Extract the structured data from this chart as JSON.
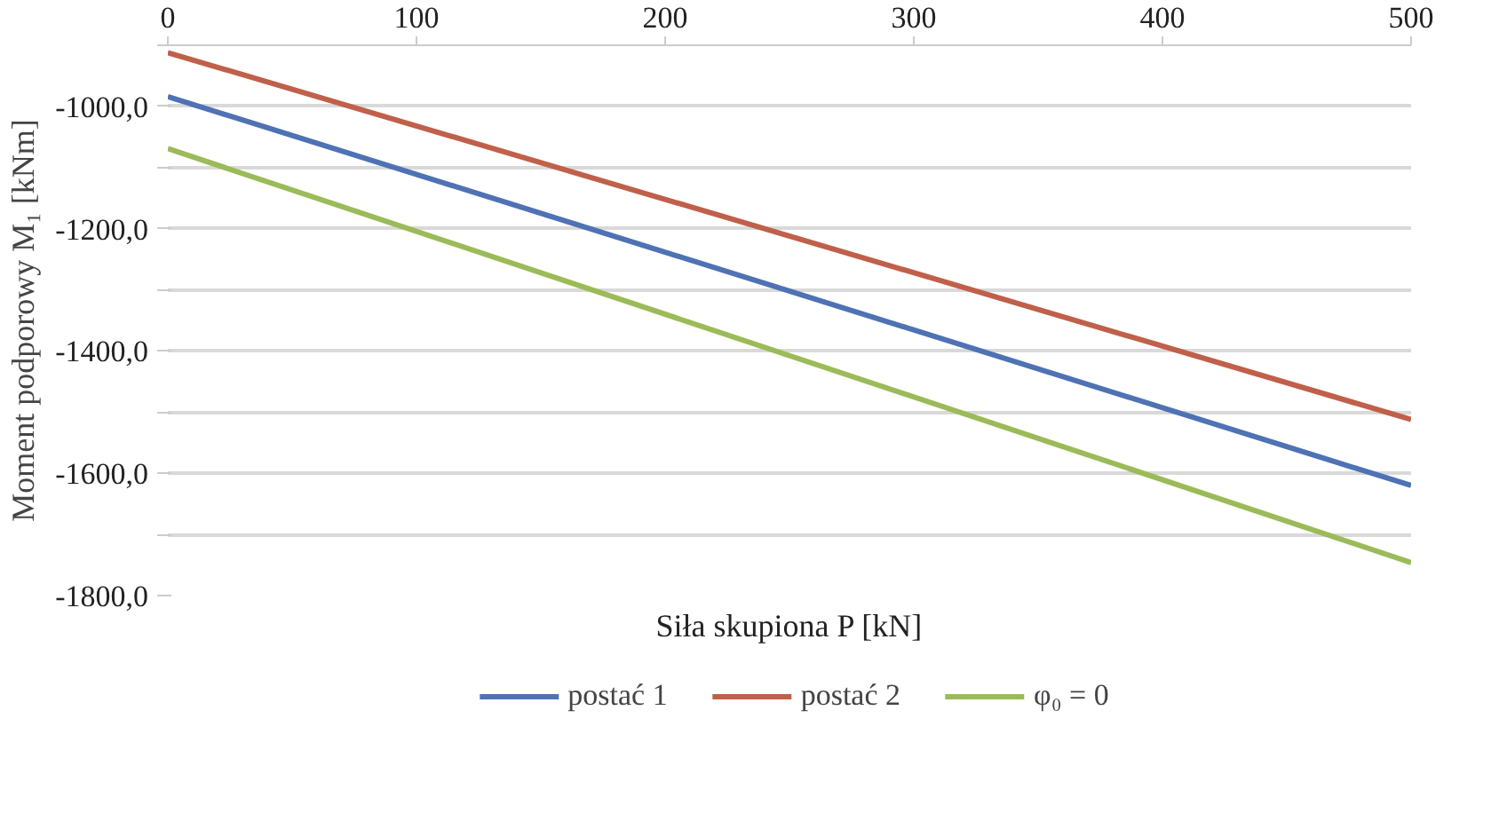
{
  "chart_data": {
    "type": "line",
    "xlabel": "Siła skupiona P [kN]",
    "ylabel": "Moment podporowy M₁ [kNm]",
    "x": [
      0,
      500
    ],
    "series": [
      {
        "name": "postać 1",
        "color": "#4f72b5",
        "values": [
          -984,
          -1620
        ]
      },
      {
        "name": "postać 2",
        "color": "#c0604a",
        "values": [
          -912,
          -1512
        ]
      },
      {
        "name": "φ₀ = 0",
        "color": "#9bbb59",
        "values": [
          -1069,
          -1746
        ]
      }
    ],
    "xlim": [
      0,
      500
    ],
    "xticks": [
      0,
      100,
      200,
      300,
      400,
      500
    ],
    "ylim": [
      -1800,
      -900
    ],
    "yticks": [
      {
        "value": -1800,
        "label": "-1800,0"
      },
      {
        "value": -1700,
        "label": null
      },
      {
        "value": -1600,
        "label": "-1600,0"
      },
      {
        "value": -1500,
        "label": null
      },
      {
        "value": -1400,
        "label": "-1400,0"
      },
      {
        "value": -1300,
        "label": null
      },
      {
        "value": -1200,
        "label": "-1200,0"
      },
      {
        "value": -1100,
        "label": null
      },
      {
        "value": -1000,
        "label": "-1000,0"
      },
      {
        "value": -900,
        "label": null
      }
    ],
    "grid": "y",
    "legend": "bottom",
    "marker": "none",
    "line_style": "solid"
  }
}
